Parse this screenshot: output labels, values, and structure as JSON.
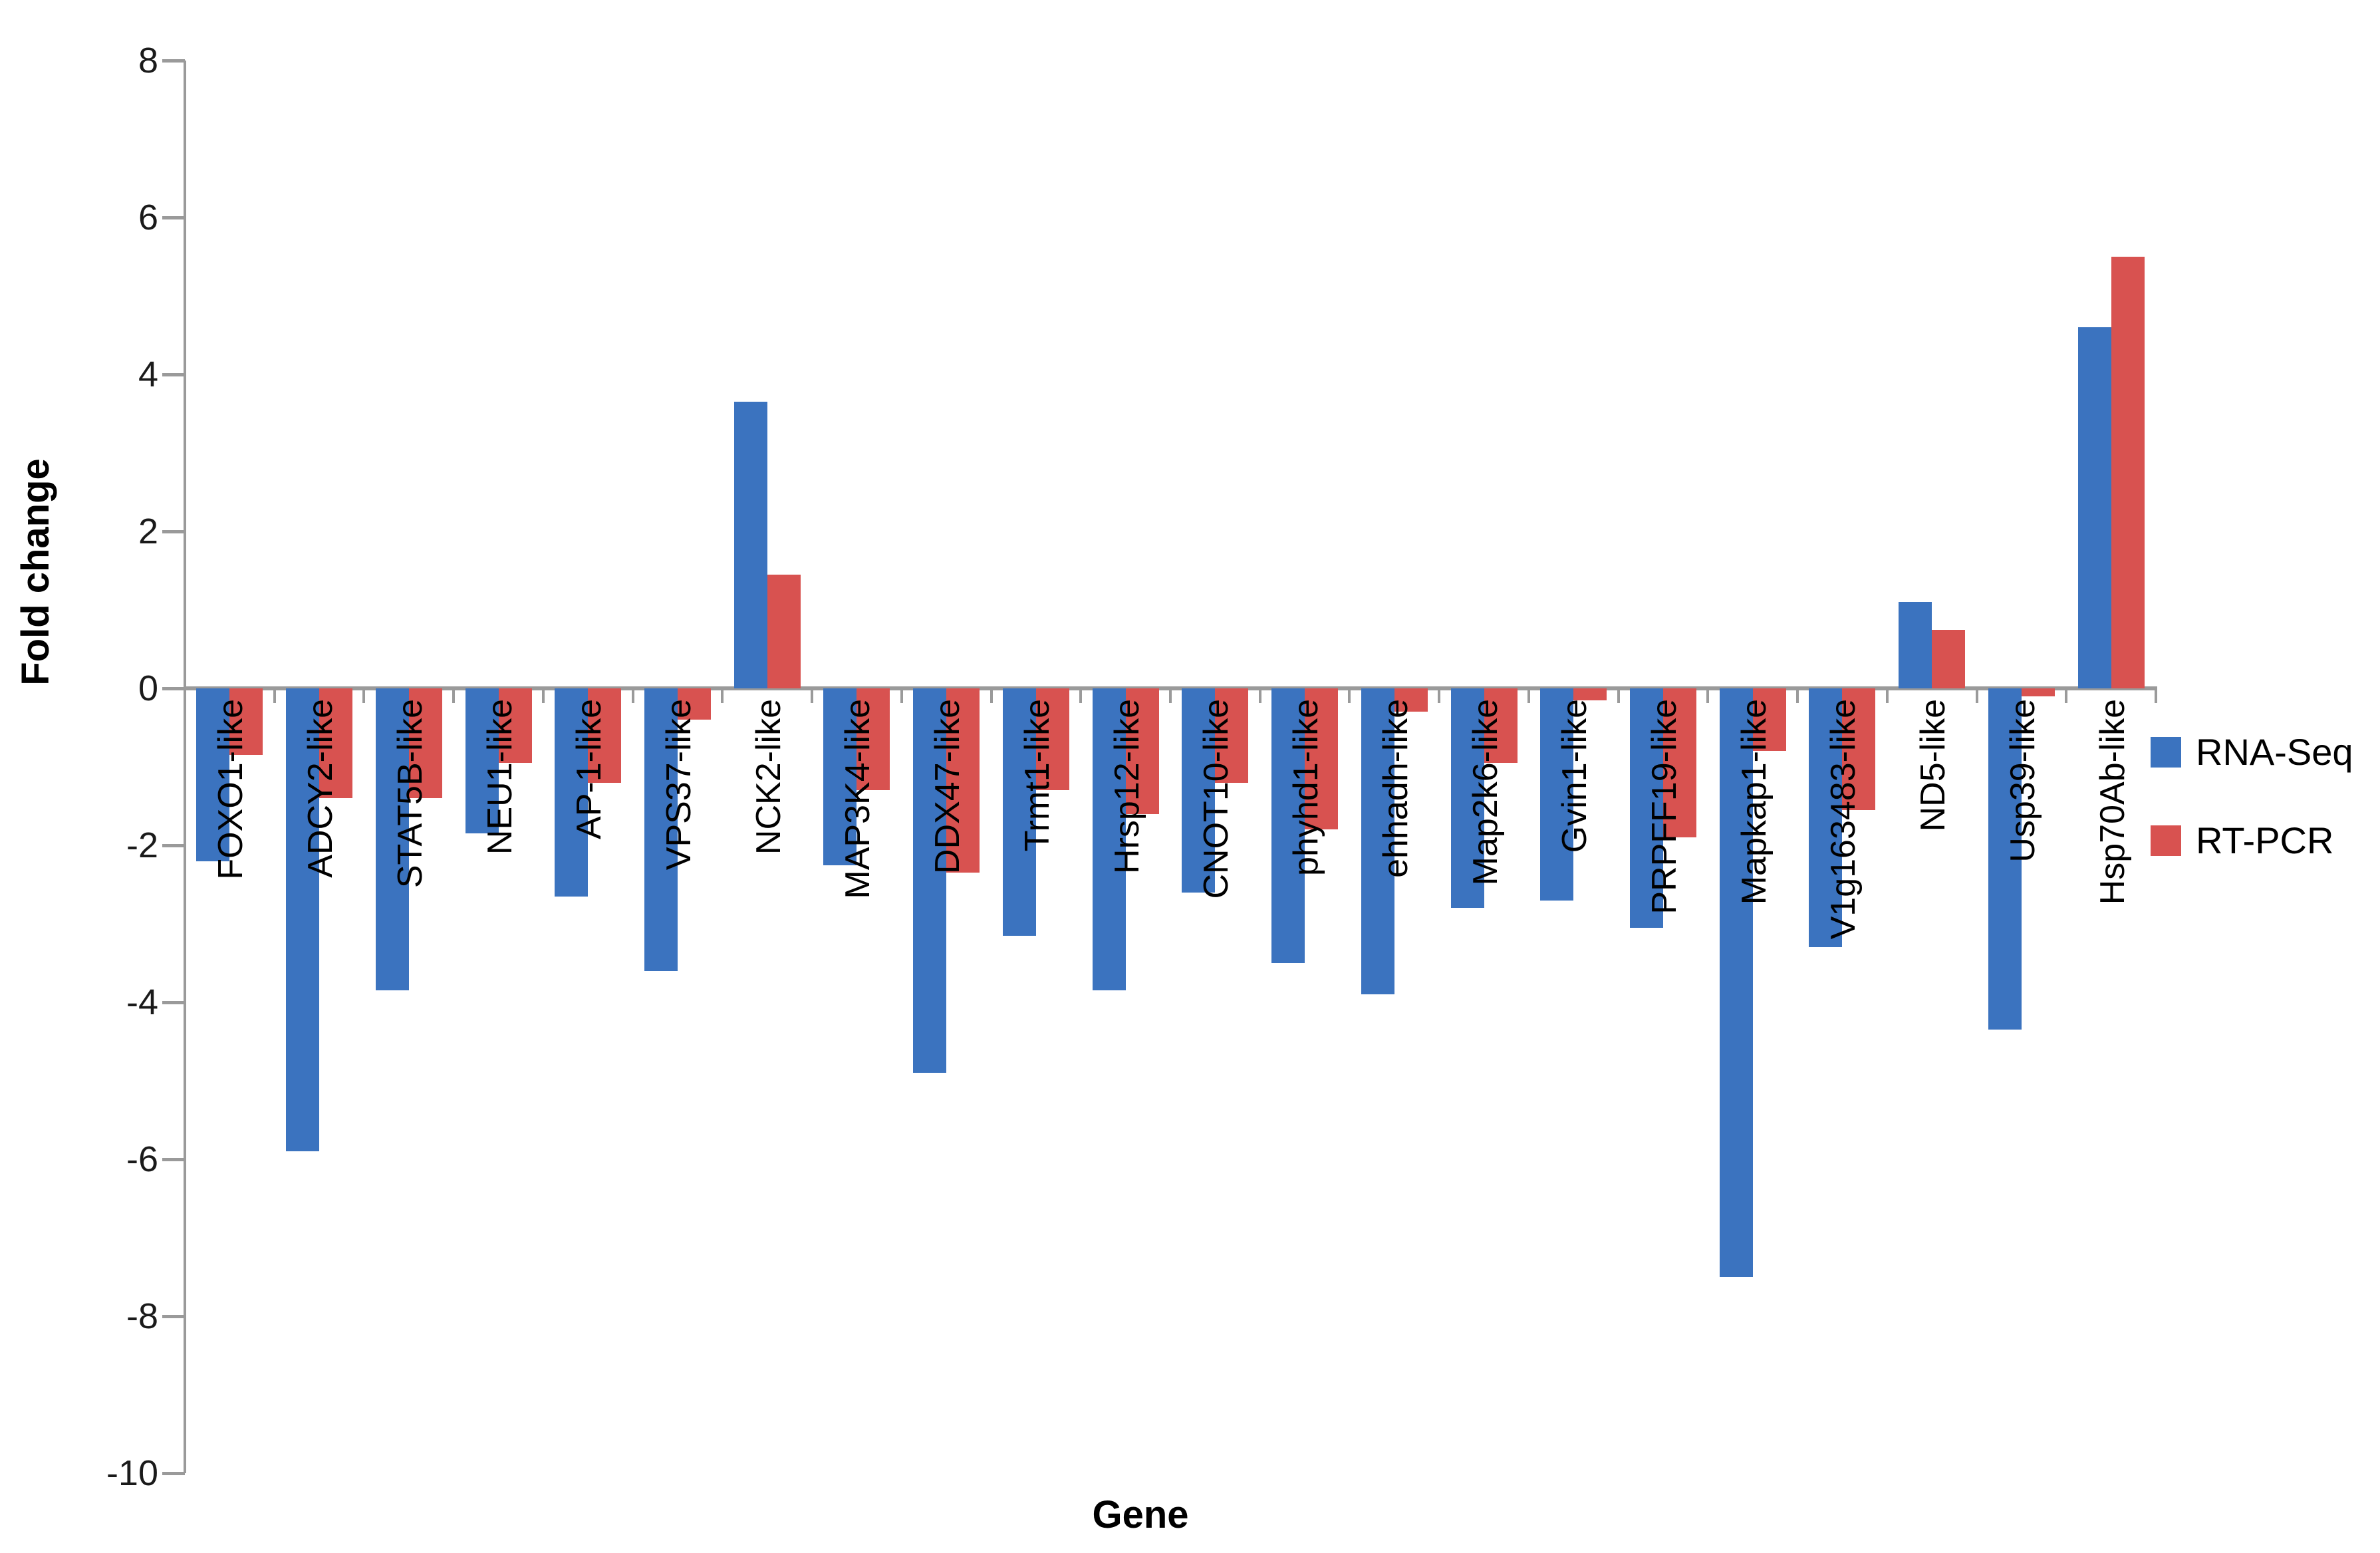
{
  "chart_data": {
    "type": "bar",
    "title": "",
    "xlabel": "Gene",
    "ylabel": "Fold change",
    "ylim": [
      -10,
      8
    ],
    "yticks": [
      8,
      6,
      4,
      2,
      0,
      -2,
      -4,
      -6,
      -8,
      -10
    ],
    "grid": false,
    "legend_position": "right",
    "axis_color": "#9a9a9a",
    "categories": [
      "FOXO1-like",
      "ADCY2-like",
      "STAT5B-like",
      "NEU1-like",
      "AP-1-like",
      "VPS37-like",
      "NCK2-like",
      "MAP3K4-like",
      "DDX47-like",
      "Trmt1-like",
      "Hrsp12-like",
      "CNOT10-like",
      "phyhd1-like",
      "ehhadh-like",
      "Map2k6-like",
      "Gvin1-like",
      "PRPFF19-like",
      "Mapkap1-like",
      "V1g163483-like",
      "ND5-like",
      "Usp39-like",
      "Hsp70Ab-like"
    ],
    "series": [
      {
        "name": "RNA-Seq",
        "color": "#3b73bf",
        "values": [
          -2.2,
          -5.9,
          -3.85,
          -1.85,
          -2.65,
          -3.6,
          3.65,
          -2.25,
          -4.9,
          -3.15,
          -3.85,
          -2.6,
          -3.5,
          -3.9,
          -2.8,
          -2.7,
          -3.05,
          -7.5,
          -3.3,
          1.1,
          -4.35,
          4.6
        ]
      },
      {
        "name": "RT-PCR",
        "color": "#d85250",
        "values": [
          -0.85,
          -1.4,
          -1.4,
          -0.95,
          -1.2,
          -0.4,
          1.45,
          -1.3,
          -2.35,
          -1.3,
          -1.6,
          -1.2,
          -1.8,
          -0.3,
          -0.95,
          -0.15,
          -1.9,
          -0.8,
          -1.55,
          0.75,
          -0.1,
          5.5
        ]
      }
    ]
  }
}
